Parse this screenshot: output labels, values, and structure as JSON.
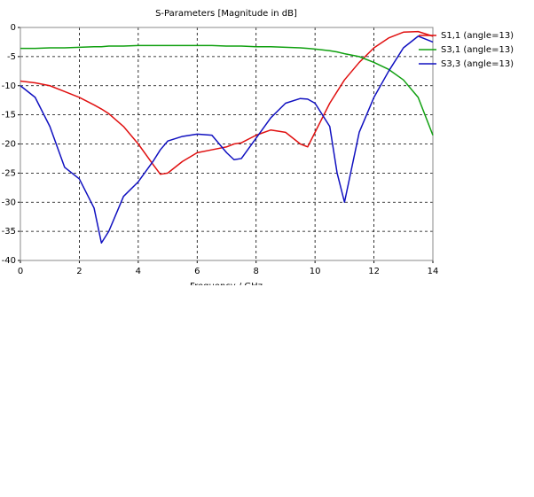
{
  "chart_data": {
    "type": "line",
    "title": "S-Parameters [Magnitude in dB]",
    "x_label": "Frequency / GHz",
    "x": [
      0,
      0.5,
      1,
      1.5,
      2,
      2.5,
      2.75,
      3,
      3.5,
      4,
      4.5,
      4.75,
      5,
      5.5,
      6,
      6.5,
      7,
      7.25,
      7.5,
      8,
      8.5,
      9,
      9.5,
      9.75,
      10,
      10.5,
      10.75,
      11,
      11.5,
      12,
      12.5,
      13,
      13.5,
      14
    ],
    "series": [
      {
        "name": "S1,1 (angle=13)",
        "color": "#e01010",
        "values": [
          -9.2,
          -9.5,
          -10,
          -11,
          -12,
          -13.3,
          -14,
          -14.8,
          -17,
          -20,
          -23.5,
          -25.2,
          -25,
          -23,
          -21.5,
          -21,
          -20.5,
          -20,
          -19.8,
          -18.5,
          -17.6,
          -18,
          -20,
          -20.5,
          -18,
          -13,
          -11,
          -9,
          -6,
          -3.5,
          -1.8,
          -0.8,
          -0.7,
          -1.5
        ]
      },
      {
        "name": "S3,1 (angle=13)",
        "color": "#10a010",
        "values": [
          -3.6,
          -3.6,
          -3.5,
          -3.5,
          -3.4,
          -3.3,
          -3.3,
          -3.2,
          -3.2,
          -3.1,
          -3.1,
          -3.1,
          -3.1,
          -3.1,
          -3.1,
          -3.1,
          -3.2,
          -3.2,
          -3.2,
          -3.3,
          -3.3,
          -3.4,
          -3.5,
          -3.6,
          -3.7,
          -4.0,
          -4.2,
          -4.5,
          -5,
          -6,
          -7.2,
          -9,
          -12,
          -18.5
        ]
      },
      {
        "name": "S3,3 (angle=13)",
        "color": "#1010c0",
        "values": [
          -10,
          -12,
          -17,
          -24,
          -26,
          -31,
          -37,
          -35,
          -29,
          -26.5,
          -23,
          -21,
          -19.5,
          -18.7,
          -18.3,
          -18.5,
          -21.5,
          -22.7,
          -22.5,
          -19,
          -15.5,
          -13,
          -12.2,
          -12.3,
          -13,
          -17,
          -25,
          -30,
          -18,
          -12,
          -7.5,
          -3.5,
          -1.5,
          -2.5
        ]
      }
    ],
    "xlim": [
      0,
      14
    ],
    "xticks": [
      0,
      2,
      4,
      6,
      8,
      10,
      12,
      14
    ],
    "ylim": [
      -40,
      0
    ],
    "yticks": [
      0,
      -5,
      -10,
      -15,
      -20,
      -25,
      -30,
      -35,
      -40
    ],
    "grid": true,
    "legend": "right"
  }
}
